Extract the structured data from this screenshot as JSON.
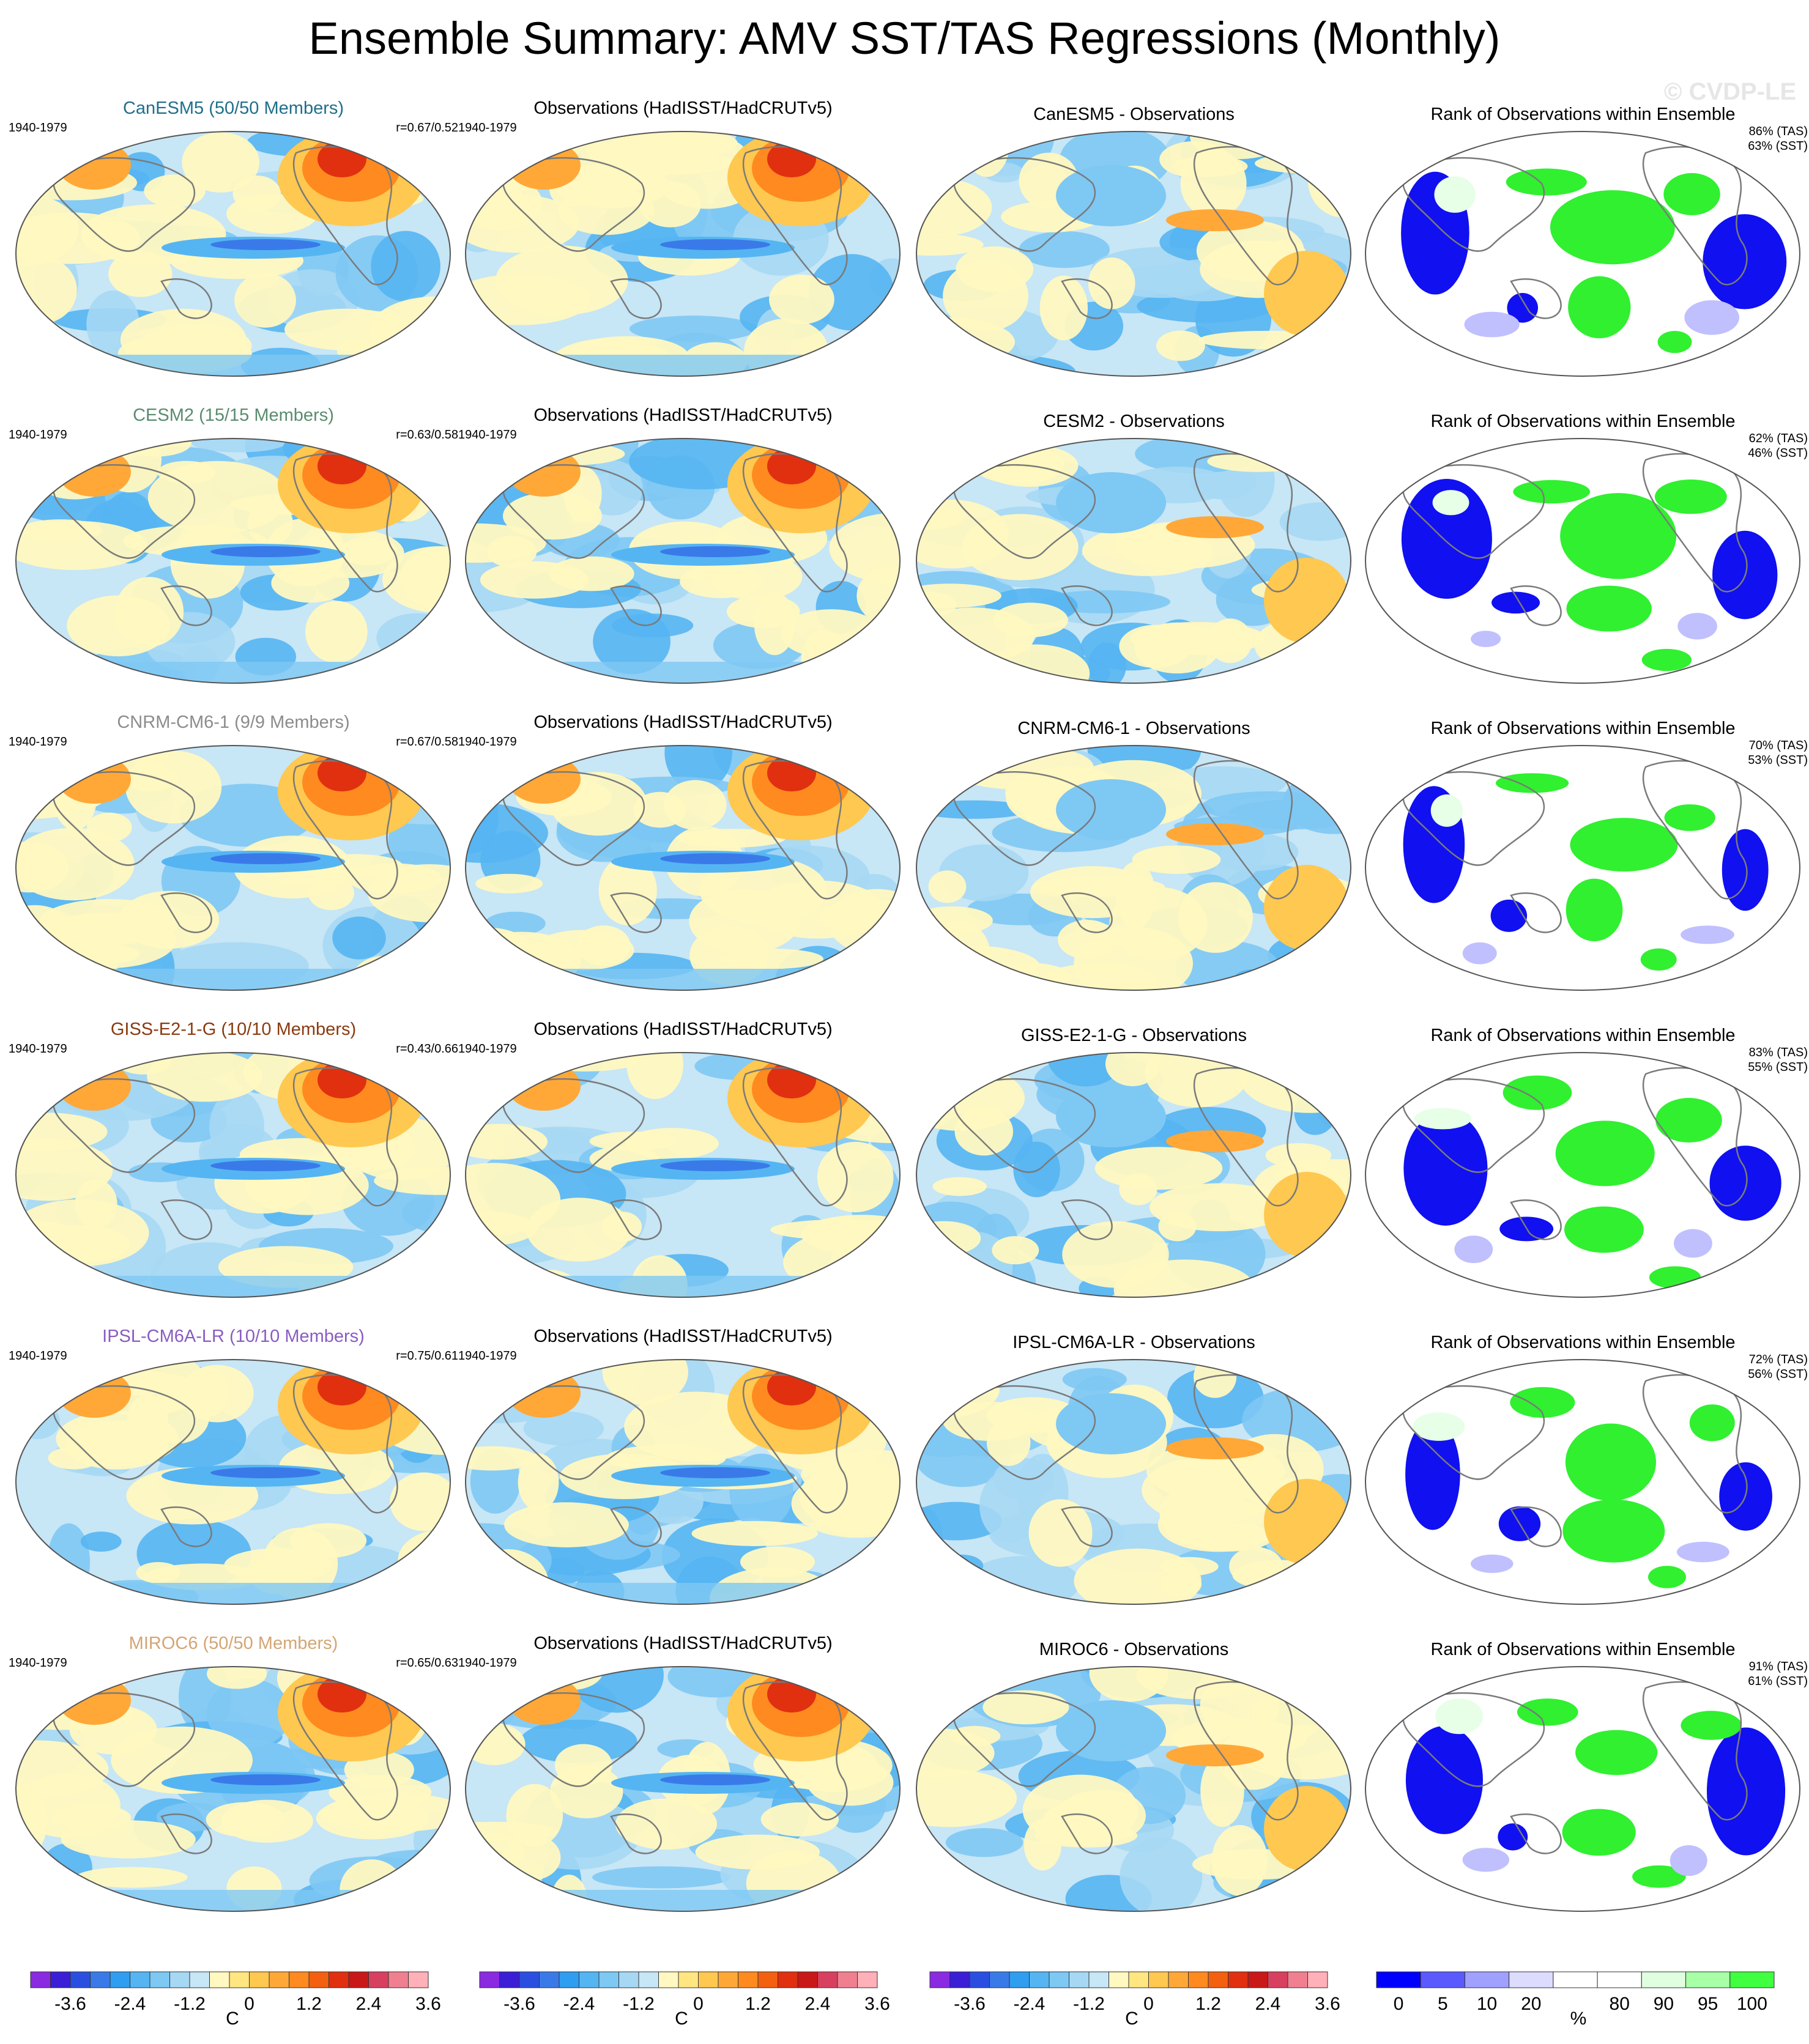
{
  "title": "Ensemble Summary: AMV SST/TAS Regressions (Monthly)",
  "watermark": "© CVDP-LE",
  "rows": [
    {
      "model": "CanESM5 (50/50 Members)",
      "model_color": "#1f6f8b",
      "period": "1940-1979",
      "r": "r=0.67/0.52",
      "obs_title": "Observations (HadISST/HadCRUTv5)",
      "obs_period": "1940-1979",
      "diff_title": "CanESM5 - Observations",
      "rank_title": "Rank of Observations within Ensemble",
      "rank_tas": "86% (TAS)",
      "rank_sst": "63% (SST)"
    },
    {
      "model": "CESM2 (15/15 Members)",
      "model_color": "#5a8c6e",
      "period": "1940-1979",
      "r": "r=0.63/0.58",
      "obs_title": "Observations (HadISST/HadCRUTv5)",
      "obs_period": "1940-1979",
      "diff_title": "CESM2 - Observations",
      "rank_title": "Rank of Observations within Ensemble",
      "rank_tas": "62% (TAS)",
      "rank_sst": "46% (SST)"
    },
    {
      "model": "CNRM-CM6-1 (9/9 Members)",
      "model_color": "#8c8c8c",
      "period": "1940-1979",
      "r": "r=0.67/0.58",
      "obs_title": "Observations (HadISST/HadCRUTv5)",
      "obs_period": "1940-1979",
      "diff_title": "CNRM-CM6-1 - Observations",
      "rank_title": "Rank of Observations within Ensemble",
      "rank_tas": "70% (TAS)",
      "rank_sst": "53% (SST)"
    },
    {
      "model": "GISS-E2-1-G (10/10 Members)",
      "model_color": "#8b3a0f",
      "period": "1940-1979",
      "r": "r=0.43/0.66",
      "obs_title": "Observations (HadISST/HadCRUTv5)",
      "obs_period": "1940-1979",
      "diff_title": "GISS-E2-1-G - Observations",
      "rank_title": "Rank of Observations within Ensemble",
      "rank_tas": "83% (TAS)",
      "rank_sst": "55% (SST)"
    },
    {
      "model": "IPSL-CM6A-LR (10/10 Members)",
      "model_color": "#8a5cc2",
      "period": "1940-1979",
      "r": "r=0.75/0.61",
      "obs_title": "Observations (HadISST/HadCRUTv5)",
      "obs_period": "1940-1979",
      "diff_title": "IPSL-CM6A-LR - Observations",
      "rank_title": "Rank of Observations within Ensemble",
      "rank_tas": "72% (TAS)",
      "rank_sst": "56% (SST)"
    },
    {
      "model": "MIROC6 (50/50 Members)",
      "model_color": "#d4a574",
      "period": "1940-1979",
      "r": "r=0.65/0.63",
      "obs_title": "Observations (HadISST/HadCRUTv5)",
      "obs_period": "1940-1979",
      "diff_title": "MIROC6 - Observations",
      "rank_title": "Rank of Observations within Ensemble",
      "rank_tas": "91% (TAS)",
      "rank_sst": "61% (SST)"
    }
  ],
  "colorbars": [
    {
      "unit": "C",
      "ticks": [
        "-3.6",
        "-2.4",
        "-1.2",
        "0",
        "1.2",
        "2.4",
        "3.6"
      ],
      "colors": [
        "#8a2be2",
        "#3a1fd6",
        "#2a4fe0",
        "#3a7ae8",
        "#2f9ef0",
        "#55b5f2",
        "#7ec8f4",
        "#a6d8f4",
        "#c7e6f6",
        "#fff8c0",
        "#ffe680",
        "#ffc850",
        "#ffa838",
        "#ff8a20",
        "#f26010",
        "#e03010",
        "#c81818",
        "#d84060",
        "#f08090",
        "#ffb0b8"
      ]
    },
    {
      "unit": "C",
      "ticks": [
        "-3.6",
        "-2.4",
        "-1.2",
        "0",
        "1.2",
        "2.4",
        "3.6"
      ],
      "colors": [
        "#8a2be2",
        "#3a1fd6",
        "#2a4fe0",
        "#3a7ae8",
        "#2f9ef0",
        "#55b5f2",
        "#7ec8f4",
        "#a6d8f4",
        "#c7e6f6",
        "#fff8c0",
        "#ffe680",
        "#ffc850",
        "#ffa838",
        "#ff8a20",
        "#f26010",
        "#e03010",
        "#c81818",
        "#d84060",
        "#f08090",
        "#ffb0b8"
      ]
    },
    {
      "unit": "C",
      "ticks": [
        "-3.6",
        "-2.4",
        "-1.2",
        "0",
        "1.2",
        "2.4",
        "3.6"
      ],
      "colors": [
        "#8a2be2",
        "#3a1fd6",
        "#2a4fe0",
        "#3a7ae8",
        "#2f9ef0",
        "#55b5f2",
        "#7ec8f4",
        "#a6d8f4",
        "#c7e6f6",
        "#fff8c0",
        "#ffe680",
        "#ffc850",
        "#ffa838",
        "#ff8a20",
        "#f26010",
        "#e03010",
        "#c81818",
        "#d84060",
        "#f08090",
        "#ffb0b8"
      ]
    },
    {
      "unit": "%",
      "ticks": [
        "0",
        "5",
        "10",
        "20",
        "80",
        "90",
        "95",
        "100"
      ],
      "colors": [
        "#0000ff",
        "#5a5aff",
        "#a0a0ff",
        "#dcdcff",
        "#ffffff",
        "#ffffff",
        "#e0ffe0",
        "#a8ffa8",
        "#40ff40"
      ]
    }
  ],
  "chart_data": [
    {
      "type": "map",
      "title": "Ensemble Summary: AMV SST/TAS Regressions (Monthly)",
      "columns": [
        "model regression",
        "observations regression",
        "model - observations",
        "rank of observations within ensemble"
      ],
      "models": [
        "CanESM5",
        "CESM2",
        "CNRM-CM6-1",
        "GISS-E2-1-G",
        "IPSL-CM6A-LR",
        "MIROC6"
      ],
      "members": [
        "50/50",
        "15/15",
        "9/9",
        "10/10",
        "10/10",
        "50/50"
      ],
      "period": "1940-1979",
      "pattern_correlation": [
        [
          0.67,
          0.52
        ],
        [
          0.63,
          0.58
        ],
        [
          0.67,
          0.58
        ],
        [
          0.43,
          0.66
        ],
        [
          0.75,
          0.61
        ],
        [
          0.65,
          0.63
        ]
      ],
      "rank_percent_tas": [
        86,
        62,
        70,
        83,
        72,
        91
      ],
      "rank_percent_sst": [
        63,
        46,
        53,
        55,
        56,
        61
      ],
      "regression_colorbar": {
        "unit": "C",
        "range": [
          -4.2,
          4.2
        ],
        "ticks": [
          -3.6,
          -2.4,
          -1.2,
          0,
          1.2,
          2.4,
          3.6
        ]
      },
      "rank_colorbar": {
        "unit": "%",
        "ticks": [
          0,
          5,
          10,
          20,
          80,
          90,
          95,
          100
        ]
      }
    }
  ]
}
